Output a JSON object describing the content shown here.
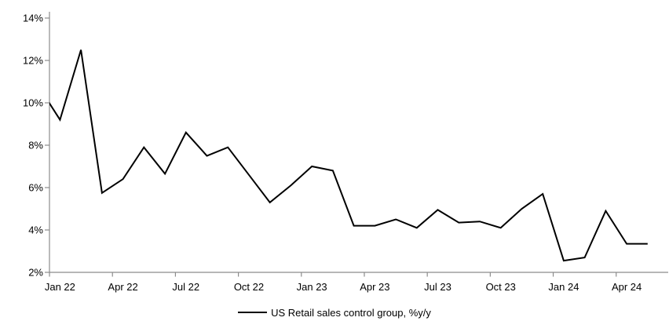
{
  "chart_data": {
    "type": "line",
    "title": "",
    "xlabel": "",
    "ylabel": "",
    "grid": false,
    "x": [
      "Dec 21",
      "Jan 22",
      "Feb 22",
      "Mar 22",
      "Apr 22",
      "May 22",
      "Jun 22",
      "Jul 22",
      "Aug 22",
      "Sep 22",
      "Oct 22",
      "Nov 22",
      "Dec 22",
      "Jan 23",
      "Feb 23",
      "Mar 23",
      "Apr 23",
      "May 23",
      "Jun 23",
      "Jul 23",
      "Aug 23",
      "Sep 23",
      "Oct 23",
      "Nov 23",
      "Dec 23",
      "Jan 24",
      "Feb 24",
      "Mar 24",
      "Apr 24",
      "May 24"
    ],
    "series": [
      {
        "name": "US Retail sales control group, %y/y",
        "color": "#000000",
        "values": [
          10.75,
          9.2,
          12.5,
          5.75,
          6.4,
          7.9,
          6.65,
          8.6,
          7.5,
          7.9,
          6.6,
          5.3,
          6.1,
          7.0,
          6.8,
          4.2,
          4.2,
          4.5,
          4.1,
          4.95,
          4.35,
          4.4,
          4.1,
          5.0,
          5.7,
          2.55,
          2.7,
          4.9,
          3.35,
          3.35
        ]
      }
    ],
    "note": "First point (Dec 21) lies left of the plot area; only its descending segment into Jan 22 is visible, clipped at the y-axis.",
    "y_axis": {
      "min": 2,
      "max": 14,
      "step": 2,
      "tick_labels": [
        "2%",
        "4%",
        "6%",
        "8%",
        "10%",
        "12%",
        "14%"
      ],
      "format": "percent"
    },
    "x_axis": {
      "tick_labels": [
        "Jan 22",
        "Apr 22",
        "Jul 22",
        "Oct 22",
        "Jan 23",
        "Apr 23",
        "Jul 23",
        "Oct 23",
        "Jan 24",
        "Apr 24"
      ],
      "tick_interval_months": 3,
      "labels_centered_in_month_cell": true
    },
    "legend": {
      "position": "bottom-center",
      "entries": [
        {
          "label": "US Retail sales control group, %y/y",
          "color": "#000000"
        }
      ]
    }
  },
  "styles": {
    "background": "#ffffff",
    "axis_color": "#8c8c8c",
    "line_color": "#000000",
    "text_color": "#000000"
  }
}
